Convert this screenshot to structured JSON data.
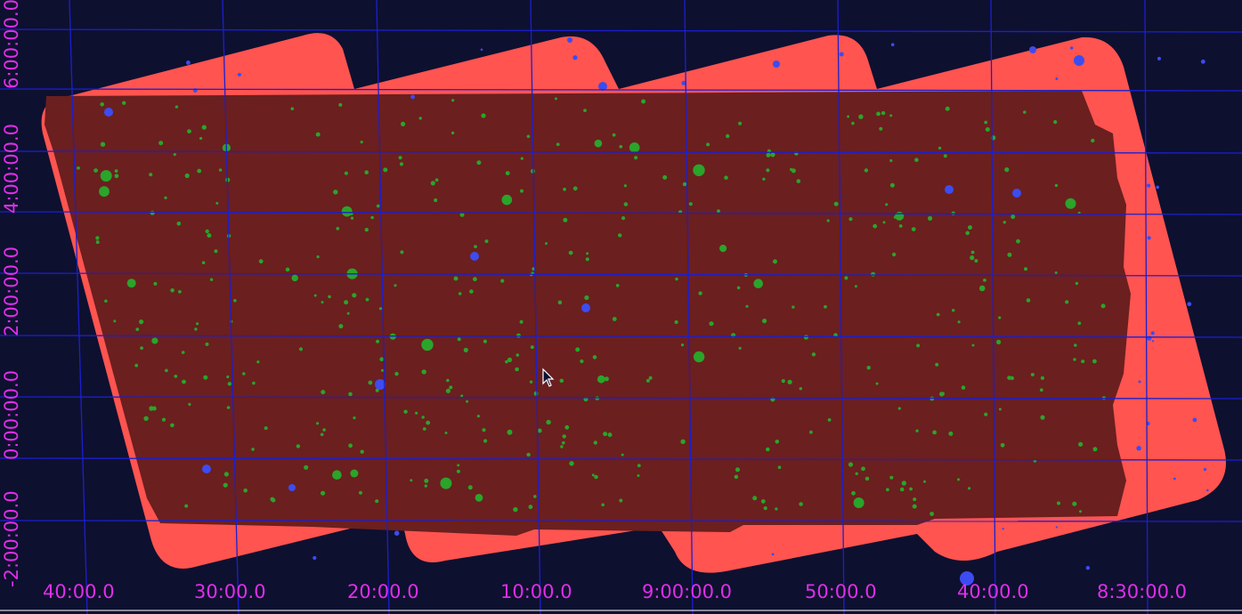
{
  "viewer": {
    "x_axis_labels": [
      "40:00.0",
      "30:00.0",
      "20:00.0",
      "10:00.0",
      "9:00:00.0",
      "50:00.0",
      "40:00.0",
      "8:30:00.0"
    ],
    "y_axis_labels": [
      "6:00:00.0",
      "4:00:00.0",
      "2:00:00.0",
      "0:00:00.0",
      "-2:00:00.0"
    ]
  },
  "colors": {
    "background": "#0e1030",
    "coverage_outer": "#ff5450",
    "coverage_inner": "#6b1f1f",
    "grid": "#1a1fd0",
    "labels": "#e02ee8",
    "sources_green": "#2aa42a",
    "sources_blue": "#3c4cf0"
  }
}
